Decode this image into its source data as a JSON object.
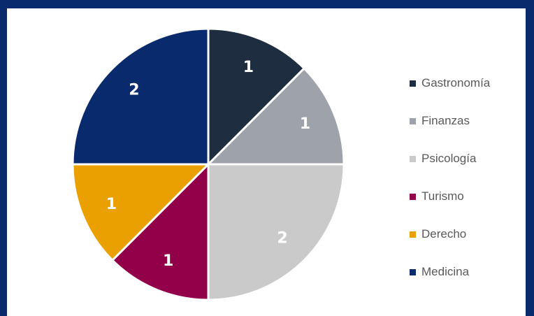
{
  "chart_data": {
    "type": "pie",
    "categories": [
      "Gastronomía",
      "Finanzas",
      "Psicología",
      "Turismo",
      "Derecho",
      "Medicina"
    ],
    "values": [
      1,
      1,
      2,
      1,
      1,
      2
    ],
    "colors": [
      "#1f2d40",
      "#9ea2aa",
      "#cacaca",
      "#93004a",
      "#eaa000",
      "#0a2a6e"
    ],
    "data_labels": [
      "1",
      "1",
      "2",
      "1",
      "1",
      "2"
    ],
    "start_angle": "12 o'clock",
    "direction": "clockwise",
    "legend": "right"
  }
}
